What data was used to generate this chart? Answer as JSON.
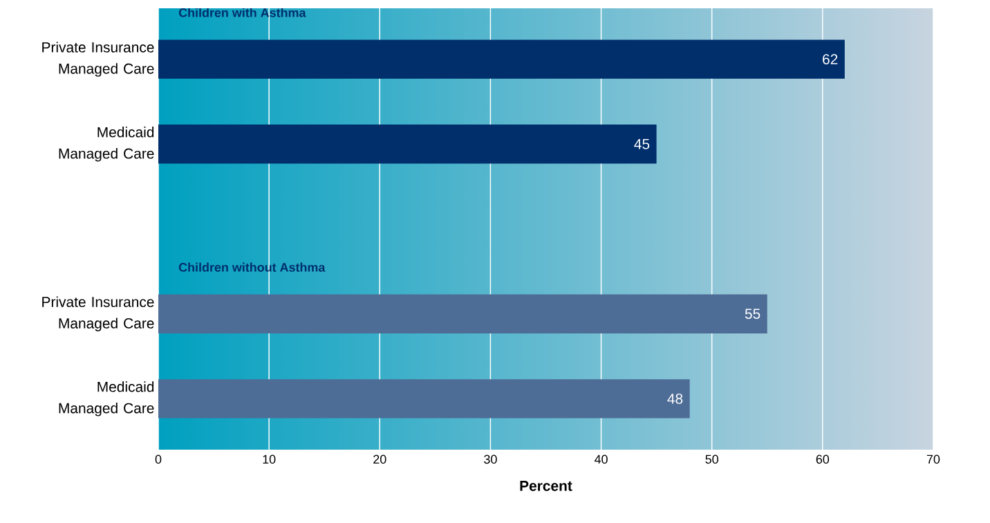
{
  "chart_data": {
    "type": "bar",
    "orientation": "horizontal",
    "categories": [
      "Private Insurance Managed Care",
      "Medicaid Managed Care",
      null,
      "Private Insurance Managed Care",
      "Medicaid Managed Care"
    ],
    "series": [
      {
        "name": "Children with Asthma",
        "color": "#002f6c",
        "values": [
          62,
          45,
          null,
          null,
          null
        ]
      },
      {
        "name": "Children without Asthma",
        "color": "#4e6d96",
        "values": [
          null,
          null,
          null,
          55,
          48
        ]
      }
    ],
    "xlabel": "Percent",
    "xlim": [
      0,
      70
    ],
    "xticks": [
      0,
      10,
      20,
      30,
      40,
      50,
      60,
      70
    ],
    "grid": "x",
    "data_labels": true
  }
}
